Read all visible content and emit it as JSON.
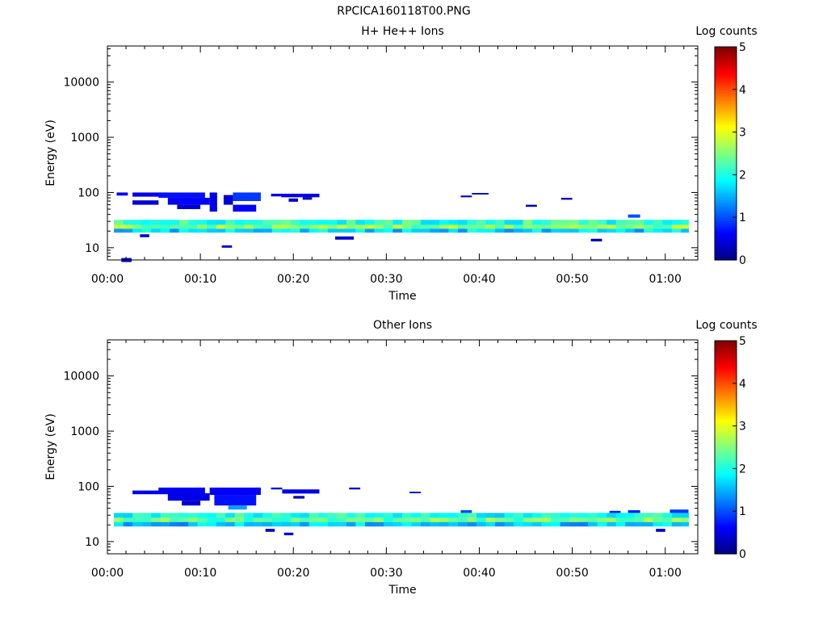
{
  "figure_title": "RPCICA160118T00.PNG",
  "colorbar": {
    "title": "Log counts",
    "ticks": [
      "0",
      "1",
      "2",
      "3",
      "4",
      "5"
    ],
    "range": [
      0,
      5
    ],
    "colormap": "jet"
  },
  "chart_data": [
    {
      "type": "heatmap",
      "title": "H+ He++ Ions",
      "xlabel": "Time",
      "ylabel": "Energy (eV)",
      "x_ticks": [
        "00:00",
        "00:10",
        "00:20",
        "00:30",
        "00:40",
        "00:50",
        "01:00"
      ],
      "x_range_minutes": [
        0,
        63.5
      ],
      "y_scale": "log",
      "y_ticks": [
        "10",
        "100",
        "1000",
        "10000"
      ],
      "y_range": [
        6,
        45000
      ],
      "z_label": "Log counts",
      "z_range": [
        0,
        5
      ],
      "time_bin_minutes": 1,
      "data_start_minute": 0.7,
      "data_end_minute": 62.5,
      "core_band": {
        "rows": [
          {
            "energy_low": 26,
            "energy_high": 32,
            "level": 2.1
          },
          {
            "energy_low": 22,
            "energy_high": 26,
            "level": 2.5
          },
          {
            "energy_low": 19,
            "energy_high": 22,
            "level": 1.7
          }
        ],
        "level_variation": 0.4
      },
      "sparse_cells": [
        {
          "t0": 1,
          "t1": 2.2,
          "e_low": 88,
          "e_high": 100,
          "level": 0.6
        },
        {
          "t0": 1.5,
          "t1": 2.6,
          "e_low": 5.5,
          "e_high": 6.5,
          "level": 0.3
        },
        {
          "t0": 2.7,
          "t1": 6.5,
          "e_low": 84,
          "e_high": 100,
          "level": 0.5
        },
        {
          "t0": 2.7,
          "t1": 5.5,
          "e_low": 60,
          "e_high": 72,
          "level": 0.4
        },
        {
          "t0": 5.5,
          "t1": 10.5,
          "e_low": 80,
          "e_high": 100,
          "level": 0.7
        },
        {
          "t0": 6.5,
          "t1": 11,
          "e_low": 60,
          "e_high": 80,
          "level": 0.6
        },
        {
          "t0": 7.5,
          "t1": 10,
          "e_low": 50,
          "e_high": 60,
          "level": 0.4
        },
        {
          "t0": 11,
          "t1": 11.8,
          "e_low": 45,
          "e_high": 100,
          "level": 0.5
        },
        {
          "t0": 12.5,
          "t1": 13.5,
          "e_low": 60,
          "e_high": 90,
          "level": 0.4
        },
        {
          "t0": 13.5,
          "t1": 16.5,
          "e_low": 70,
          "e_high": 100,
          "level": 0.9
        },
        {
          "t0": 13.5,
          "t1": 16,
          "e_low": 45,
          "e_high": 60,
          "level": 0.6
        },
        {
          "t0": 17.6,
          "t1": 18.8,
          "e_low": 85,
          "e_high": 95,
          "level": 0.5
        },
        {
          "t0": 18.7,
          "t1": 22.8,
          "e_low": 82,
          "e_high": 95,
          "level": 0.5
        },
        {
          "t0": 19.5,
          "t1": 20.5,
          "e_low": 68,
          "e_high": 78,
          "level": 0.3
        },
        {
          "t0": 21,
          "t1": 22,
          "e_low": 74,
          "e_high": 82,
          "level": 0.3
        },
        {
          "t0": 12.3,
          "t1": 13.4,
          "e_low": 10,
          "e_high": 11,
          "level": 0.3
        },
        {
          "t0": 3.5,
          "t1": 4.5,
          "e_low": 15.5,
          "e_high": 17.5,
          "level": 0.4
        },
        {
          "t0": 24.5,
          "t1": 26.5,
          "e_low": 14,
          "e_high": 16,
          "level": 0.4
        },
        {
          "t0": 38,
          "t1": 39.2,
          "e_low": 82,
          "e_high": 88,
          "level": 0.3
        },
        {
          "t0": 39.2,
          "t1": 41,
          "e_low": 92,
          "e_high": 98,
          "level": 0.3
        },
        {
          "t0": 45,
          "t1": 46.2,
          "e_low": 55,
          "e_high": 60,
          "level": 0.3
        },
        {
          "t0": 48.8,
          "t1": 50,
          "e_low": 74,
          "e_high": 80,
          "level": 0.3
        },
        {
          "t0": 52,
          "t1": 53.2,
          "e_low": 13,
          "e_high": 14.5,
          "level": 0.3
        },
        {
          "t0": 56,
          "t1": 57.3,
          "e_low": 35,
          "e_high": 40,
          "level": 1.0
        }
      ]
    },
    {
      "type": "heatmap",
      "title": "Other Ions",
      "xlabel": "Time",
      "ylabel": "Energy (eV)",
      "x_ticks": [
        "00:00",
        "00:10",
        "00:20",
        "00:30",
        "00:40",
        "00:50",
        "01:00"
      ],
      "x_range_minutes": [
        0,
        63.5
      ],
      "y_scale": "log",
      "y_ticks": [
        "10",
        "100",
        "1000",
        "10000"
      ],
      "y_range": [
        6,
        45000
      ],
      "z_label": "Log counts",
      "z_range": [
        0,
        5
      ],
      "time_bin_minutes": 1,
      "data_start_minute": 0.7,
      "data_end_minute": 62.5,
      "core_band": {
        "rows": [
          {
            "energy_low": 27,
            "energy_high": 33,
            "level": 2.0
          },
          {
            "energy_low": 22.5,
            "energy_high": 27,
            "level": 2.4
          },
          {
            "energy_low": 19,
            "energy_high": 22.5,
            "level": 1.6
          }
        ],
        "level_variation": 0.4
      },
      "sparse_cells": [
        {
          "t0": 2.7,
          "t1": 6.5,
          "e_low": 72,
          "e_high": 84,
          "level": 0.5
        },
        {
          "t0": 5.5,
          "t1": 10.5,
          "e_low": 75,
          "e_high": 95,
          "level": 0.6
        },
        {
          "t0": 6.5,
          "t1": 11,
          "e_low": 55,
          "e_high": 75,
          "level": 0.5
        },
        {
          "t0": 8,
          "t1": 10,
          "e_low": 45,
          "e_high": 55,
          "level": 0.4
        },
        {
          "t0": 11,
          "t1": 16.5,
          "e_low": 70,
          "e_high": 95,
          "level": 0.6
        },
        {
          "t0": 11.5,
          "t1": 16,
          "e_low": 45,
          "e_high": 70,
          "level": 0.7
        },
        {
          "t0": 13,
          "t1": 15,
          "e_low": 38,
          "e_high": 45,
          "level": 1.4
        },
        {
          "t0": 17.6,
          "t1": 18.8,
          "e_low": 88,
          "e_high": 95,
          "level": 0.4
        },
        {
          "t0": 18.8,
          "t1": 22.8,
          "e_low": 74,
          "e_high": 88,
          "level": 0.5
        },
        {
          "t0": 20,
          "t1": 21.2,
          "e_low": 60,
          "e_high": 67,
          "level": 0.3
        },
        {
          "t0": 26,
          "t1": 27.2,
          "e_low": 88,
          "e_high": 95,
          "level": 0.3
        },
        {
          "t0": 32.5,
          "t1": 33.7,
          "e_low": 75,
          "e_high": 80,
          "level": 0.3
        },
        {
          "t0": 17,
          "t1": 18,
          "e_low": 15,
          "e_high": 17,
          "level": 0.4
        },
        {
          "t0": 19,
          "t1": 20,
          "e_low": 13,
          "e_high": 14.5,
          "level": 0.4
        },
        {
          "t0": 38,
          "t1": 39.2,
          "e_low": 33,
          "e_high": 37,
          "level": 1.0
        },
        {
          "t0": 54,
          "t1": 55.2,
          "e_low": 33,
          "e_high": 36,
          "level": 0.8
        },
        {
          "t0": 56,
          "t1": 57.3,
          "e_low": 33,
          "e_high": 37,
          "level": 0.8
        },
        {
          "t0": 60.5,
          "t1": 62.5,
          "e_low": 33,
          "e_high": 38,
          "level": 0.9
        },
        {
          "t0": 59,
          "t1": 60,
          "e_low": 15,
          "e_high": 17,
          "level": 0.4
        }
      ]
    }
  ]
}
